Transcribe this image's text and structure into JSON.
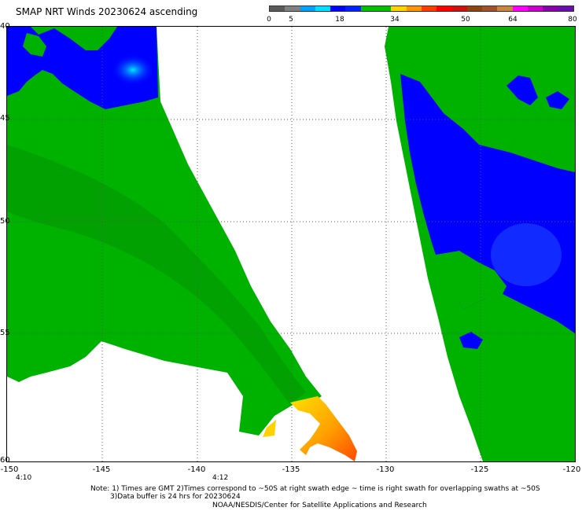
{
  "title": "SMAP NRT Winds 20230624 ascending",
  "colorbar": {
    "labels": [
      "0",
      "5",
      "18",
      "34",
      "50",
      "64",
      "80"
    ],
    "segments": [
      {
        "color": "#595959"
      },
      {
        "color": "#808080"
      },
      {
        "color": "#00a2ff"
      },
      {
        "color": "#00e0ff"
      },
      {
        "color": "#0000ff"
      },
      {
        "color": "#0020ff"
      },
      {
        "color": "#00c000"
      },
      {
        "color": "#00c000"
      },
      {
        "color": "#ffd200"
      },
      {
        "color": "#ff9600"
      },
      {
        "color": "#ff3c00"
      },
      {
        "color": "#ff0000"
      },
      {
        "color": "#d01010"
      },
      {
        "color": "#8b4513"
      },
      {
        "color": "#a0522d"
      },
      {
        "color": "#c68642"
      },
      {
        "color": "#ff00ff"
      },
      {
        "color": "#cc00cc"
      },
      {
        "color": "#8800aa"
      },
      {
        "color": "#6a0dad"
      }
    ]
  },
  "axes": {
    "x_ticks": [
      "-150",
      "-145",
      "-140",
      "-135",
      "-130",
      "-125",
      "-120"
    ],
    "y_ticks": [
      "40",
      "45",
      "50",
      "55",
      "60"
    ]
  },
  "time_labels": [
    "4:10",
    "4:12"
  ],
  "notes": {
    "line1": "Note: 1) Times are GMT 2)Times correspond to ~50S at right swath edge ~ time is right swath for overlapping swaths at ~50S",
    "line2": "3)Data buffer is 24 hrs for 20230624",
    "line3": "NOAA/NESDIS/Center for Satellite Applications and Research"
  },
  "colors": {
    "green": "#00b200",
    "dark_green": "#009000",
    "blue": "#0000ff",
    "light_blue": "#00c8ff",
    "yellow": "#ffd200",
    "orange": "#ff8c00",
    "red_orange": "#ff4a00"
  }
}
